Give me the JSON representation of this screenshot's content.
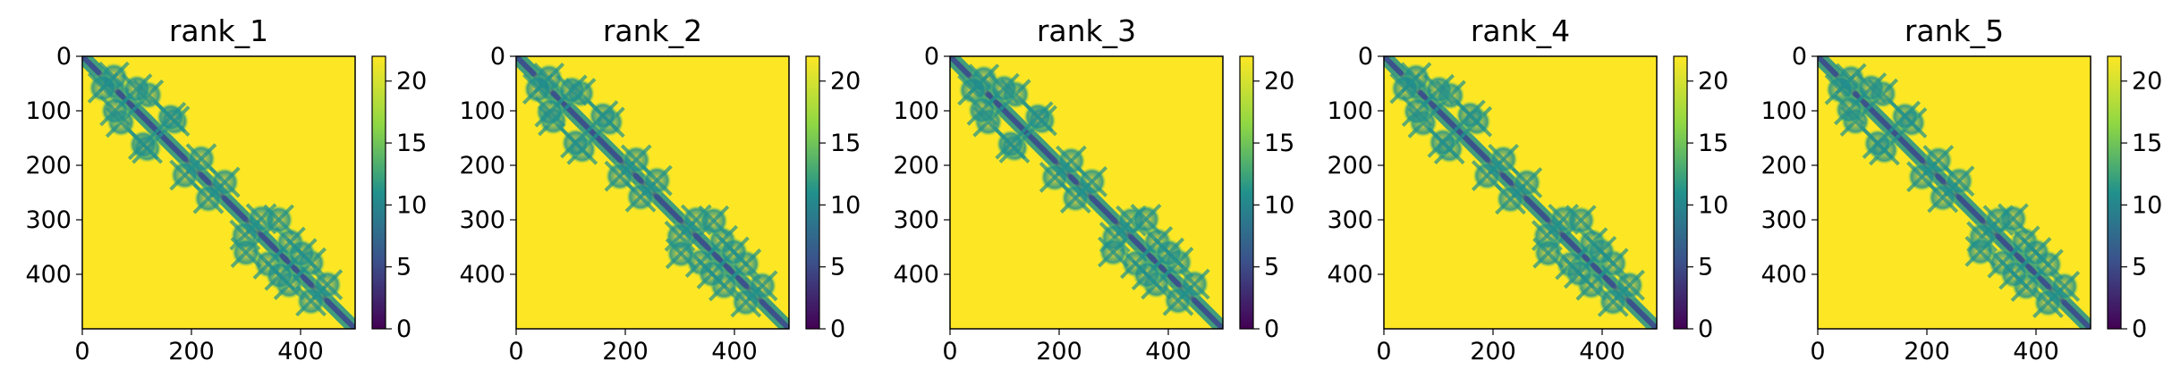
{
  "chart_data": [
    {
      "type": "heatmap",
      "title": "rank_1",
      "matrix_size": 500,
      "colormap": "viridis",
      "color_range": [
        0,
        22
      ],
      "xlim": [
        0,
        500
      ],
      "ylim": [
        500,
        0
      ],
      "xticks": [
        "0",
        "200",
        "400"
      ],
      "yticks": [
        "0",
        "100",
        "200",
        "300",
        "400"
      ],
      "colorbar_ticks": [
        "0",
        "5",
        "10",
        "15",
        "20"
      ],
      "xlabel": "",
      "ylabel": ""
    },
    {
      "type": "heatmap",
      "title": "rank_2",
      "matrix_size": 500,
      "colormap": "viridis",
      "color_range": [
        0,
        22
      ],
      "xlim": [
        0,
        500
      ],
      "ylim": [
        500,
        0
      ],
      "xticks": [
        "0",
        "200",
        "400"
      ],
      "yticks": [
        "0",
        "100",
        "200",
        "300",
        "400"
      ],
      "colorbar_ticks": [
        "0",
        "5",
        "10",
        "15",
        "20"
      ],
      "xlabel": "",
      "ylabel": ""
    },
    {
      "type": "heatmap",
      "title": "rank_3",
      "matrix_size": 500,
      "colormap": "viridis",
      "color_range": [
        0,
        22
      ],
      "xlim": [
        0,
        500
      ],
      "ylim": [
        500,
        0
      ],
      "xticks": [
        "0",
        "200",
        "400"
      ],
      "yticks": [
        "0",
        "100",
        "200",
        "300",
        "400"
      ],
      "colorbar_ticks": [
        "0",
        "5",
        "10",
        "15",
        "20"
      ],
      "xlabel": "",
      "ylabel": ""
    },
    {
      "type": "heatmap",
      "title": "rank_4",
      "matrix_size": 500,
      "colormap": "viridis",
      "color_range": [
        0,
        22
      ],
      "xlim": [
        0,
        500
      ],
      "ylim": [
        500,
        0
      ],
      "xticks": [
        "0",
        "200",
        "400"
      ],
      "yticks": [
        "0",
        "100",
        "200",
        "300",
        "400"
      ],
      "colorbar_ticks": [
        "0",
        "5",
        "10",
        "15",
        "20"
      ],
      "xlabel": "",
      "ylabel": ""
    },
    {
      "type": "heatmap",
      "title": "rank_5",
      "matrix_size": 500,
      "colormap": "viridis",
      "color_range": [
        0,
        22
      ],
      "xlim": [
        0,
        500
      ],
      "ylim": [
        500,
        0
      ],
      "xticks": [
        "0",
        "200",
        "400"
      ],
      "yticks": [
        "0",
        "100",
        "200",
        "300",
        "400"
      ],
      "colorbar_ticks": [
        "0",
        "5",
        "10",
        "15",
        "20"
      ],
      "xlabel": "",
      "ylabel": ""
    }
  ],
  "colors": {
    "background": "#ffffff",
    "high": "#fde725",
    "mid_high": "#8fd744",
    "mid": "#21918c",
    "mid_low": "#3b528b",
    "low": "#440154"
  }
}
